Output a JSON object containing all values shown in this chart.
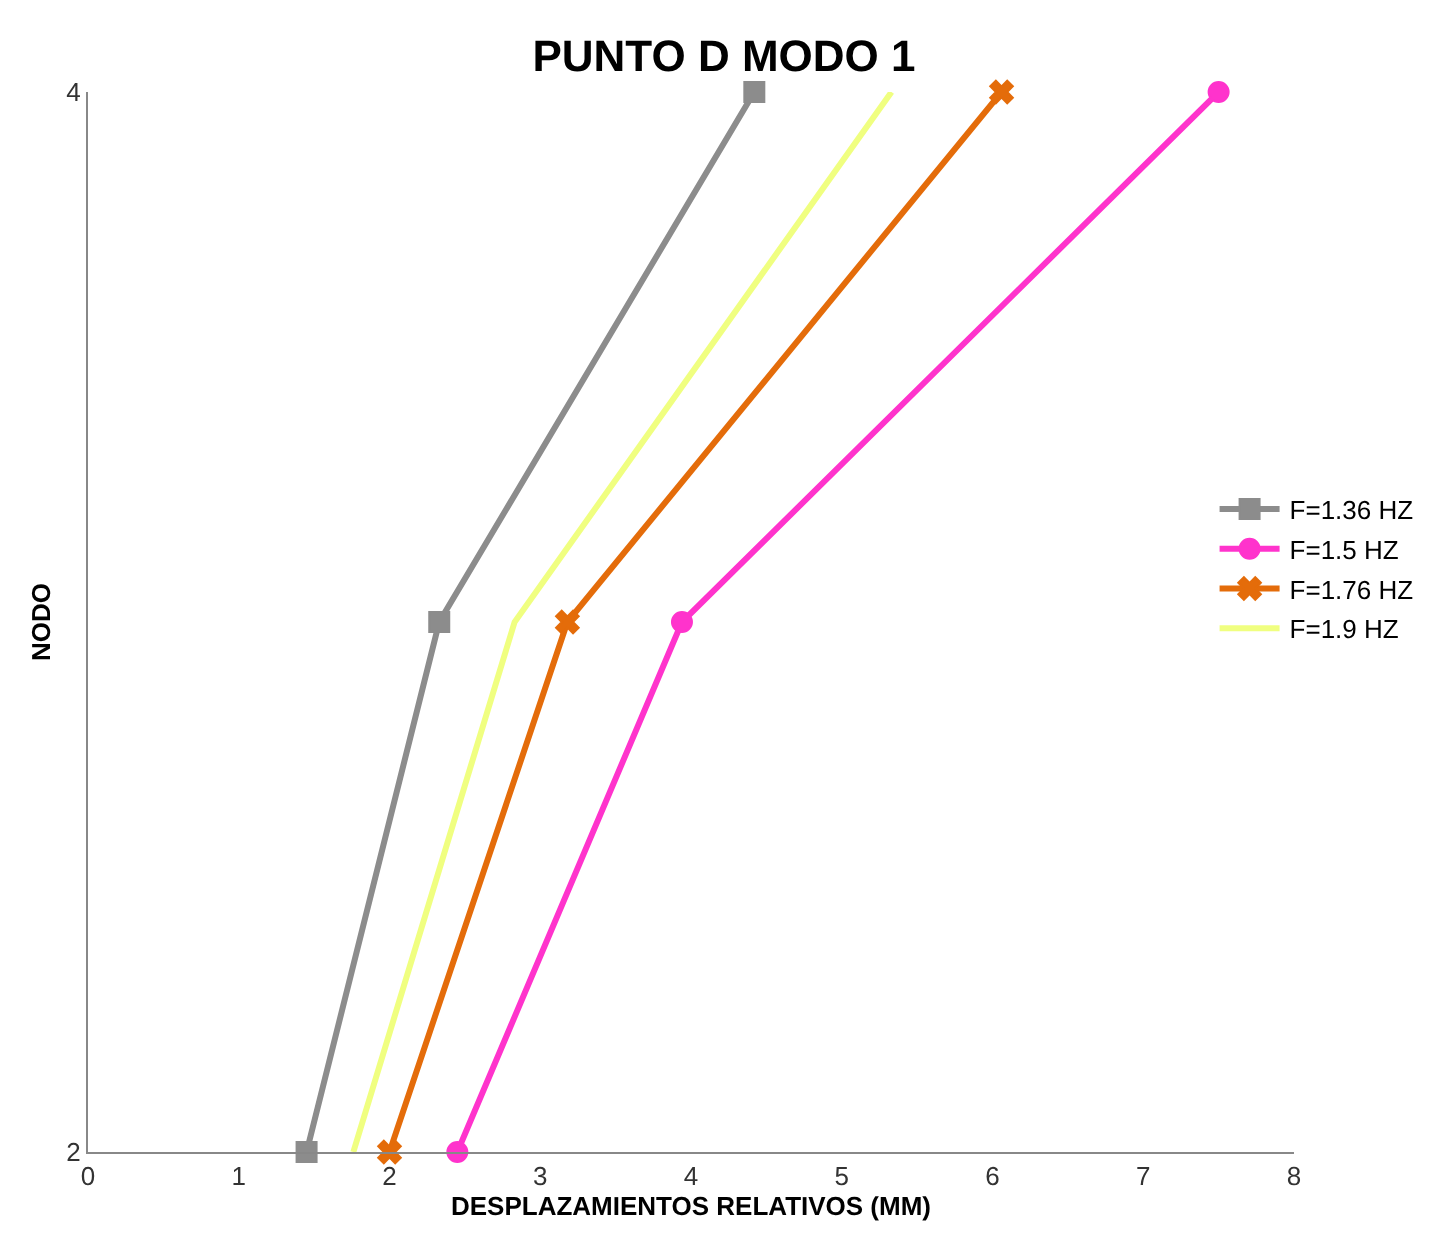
{
  "chart_data": {
    "type": "line",
    "title": "PUNTO D MODO 1",
    "xlabel": "DESPLAZAMIENTOS RELATIVOS (MM)",
    "ylabel": "NODO",
    "xlim": [
      0,
      8
    ],
    "xticks": [
      0,
      1,
      2,
      3,
      4,
      5,
      6,
      7,
      8
    ],
    "ylim": [
      2,
      4
    ],
    "yticks": [
      2,
      4
    ],
    "grid": false,
    "legend": "right",
    "line_style": "solid",
    "series": [
      {
        "name": "F=1.36 HZ",
        "color": "#8c8c8c",
        "marker": "square",
        "x": [
          1.45,
          2.33,
          4.42
        ],
        "values": [
          2,
          3,
          4
        ]
      },
      {
        "name": "F=1.5 HZ",
        "color": "#ff33cc",
        "marker": "circle",
        "x": [
          2.45,
          3.94,
          7.5
        ],
        "values": [
          2,
          3,
          4
        ]
      },
      {
        "name": "F=1.76 HZ",
        "color": "#e46c0a",
        "marker": "cross",
        "x": [
          2.0,
          3.18,
          6.06
        ],
        "values": [
          2,
          3,
          4
        ]
      },
      {
        "name": "F=1.9 HZ",
        "color": "#f0ff80",
        "marker": "none",
        "x": [
          1.76,
          2.83,
          5.33
        ],
        "values": [
          2,
          3,
          4
        ]
      }
    ]
  }
}
